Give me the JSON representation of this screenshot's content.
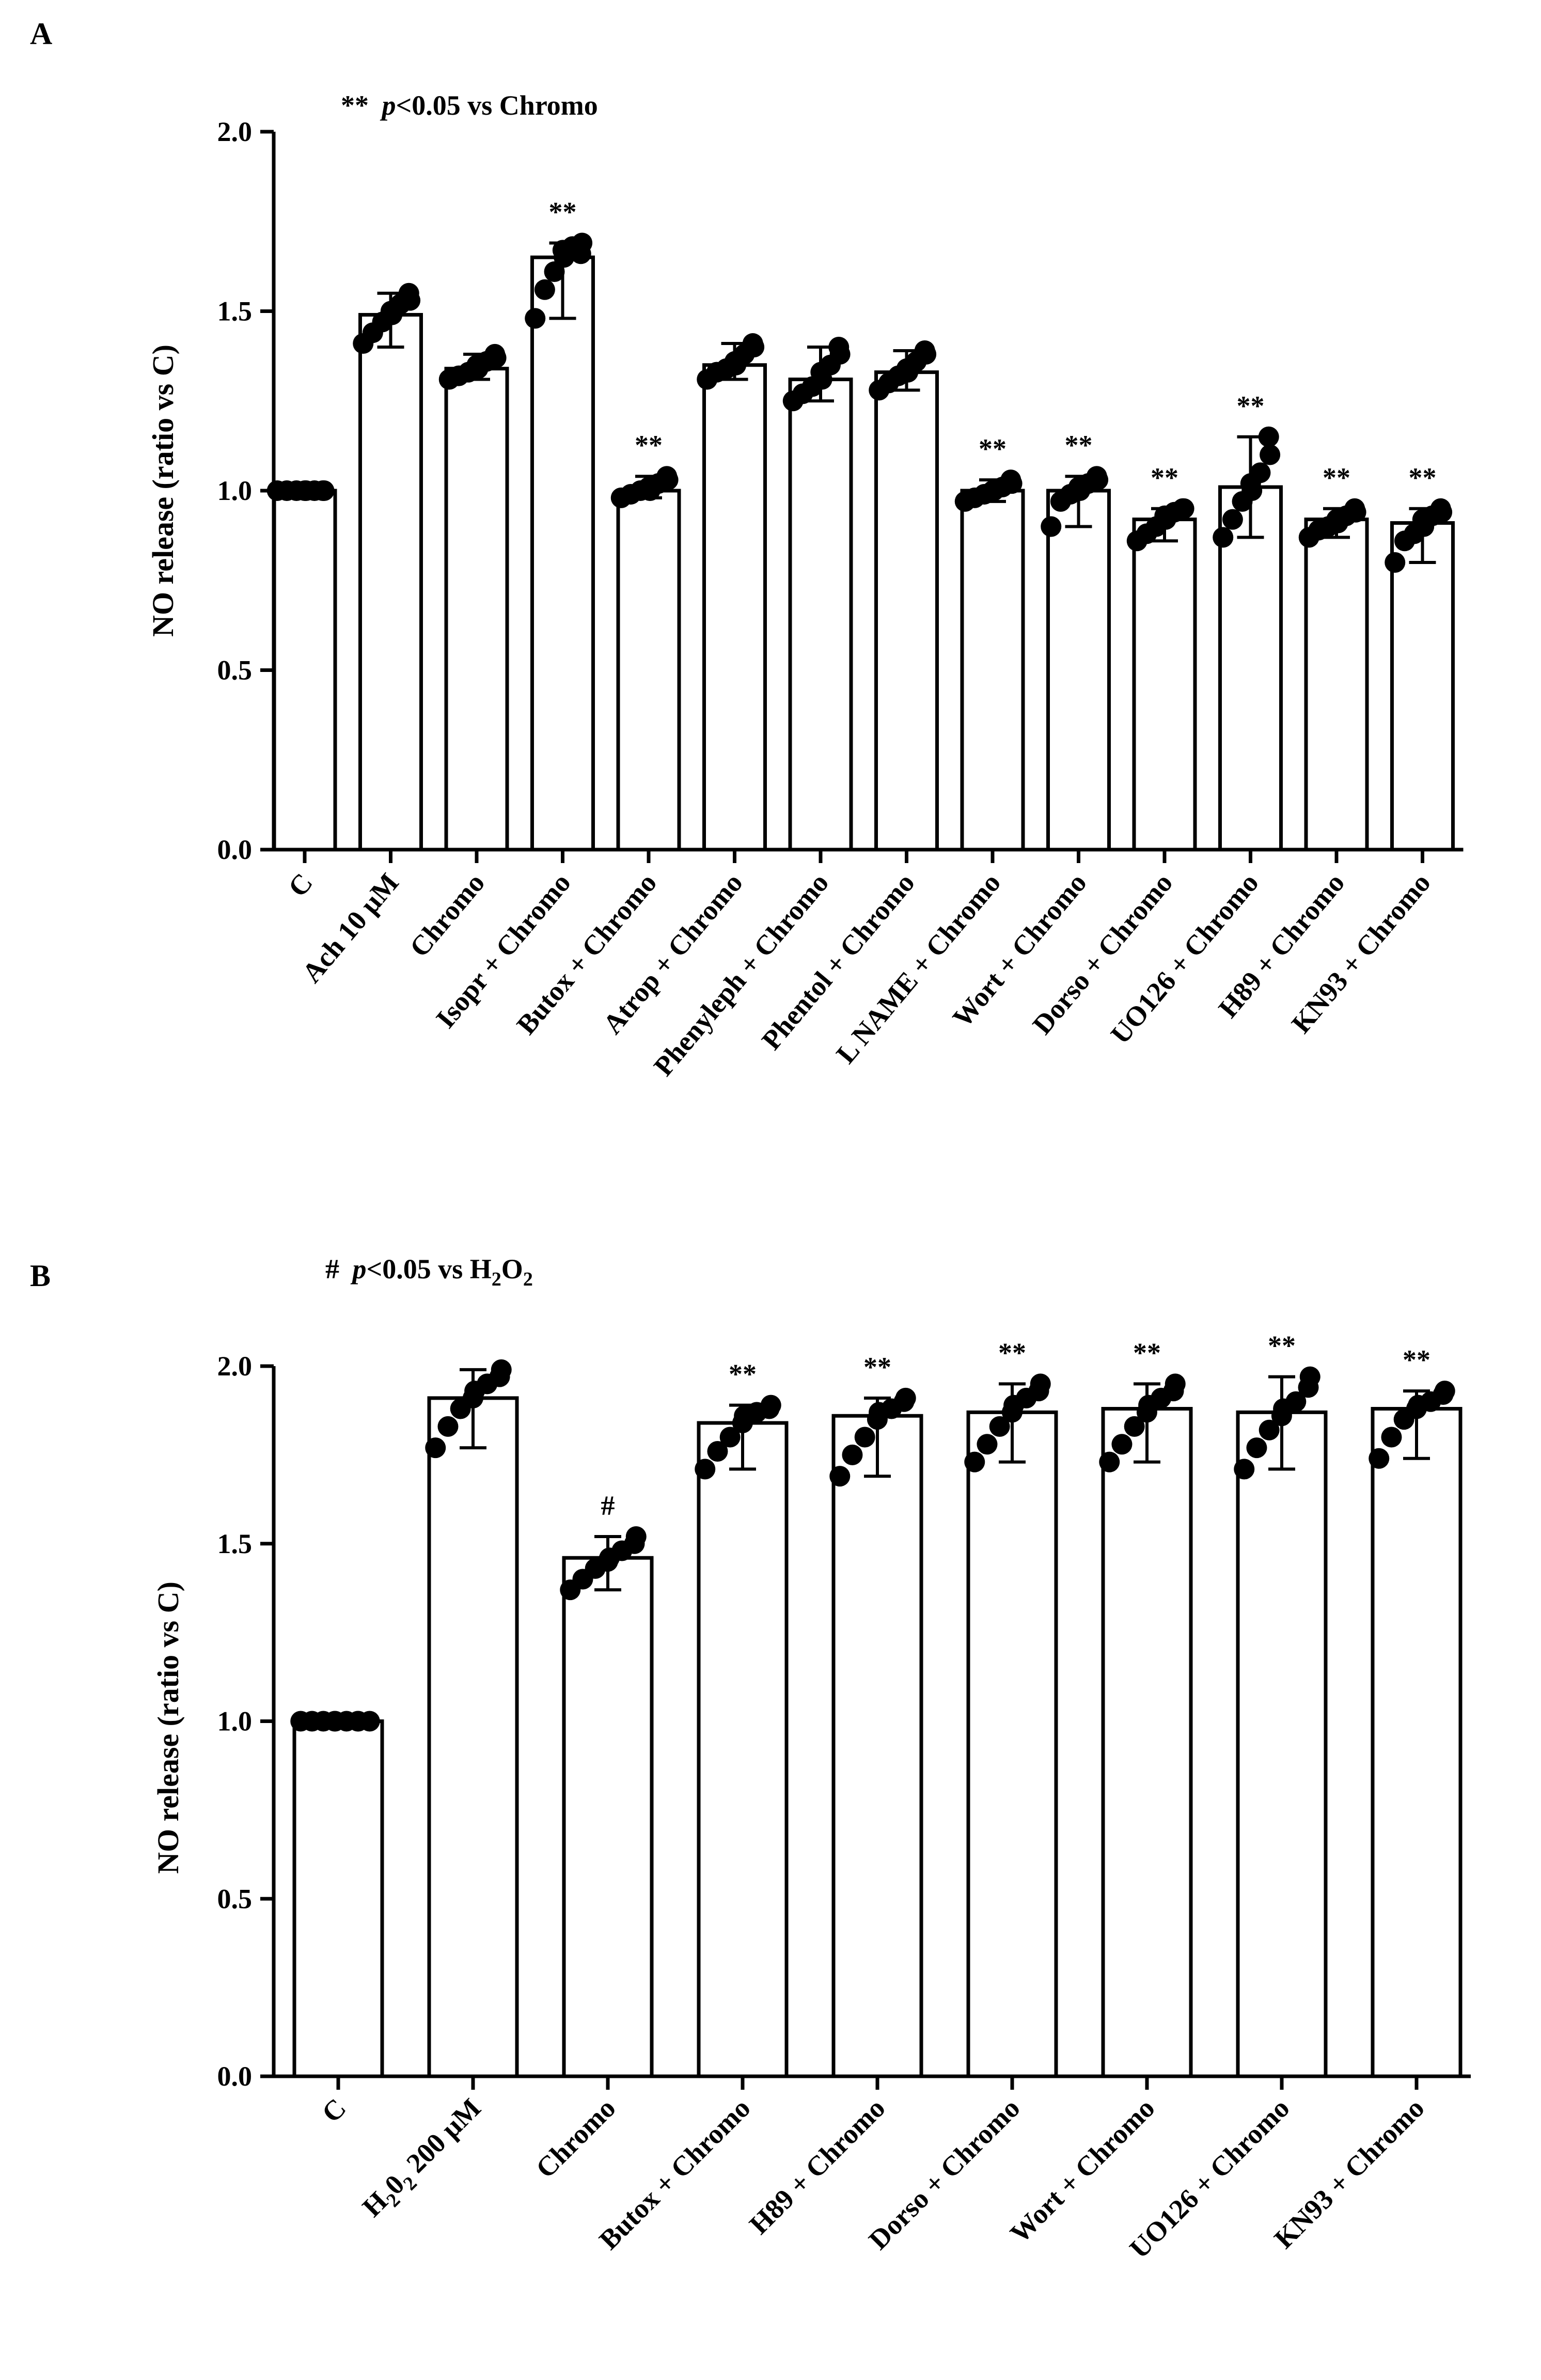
{
  "chart_data": [
    {
      "type": "bar",
      "panel": "A",
      "note": {
        "prefix": "**",
        "italic": "p",
        "rest": "<0.05 vs Chromo"
      },
      "ylabel": "NO release (ratio vs C)",
      "ylim": [
        0.0,
        2.0
      ],
      "yticks": [
        "0.0",
        "0.5",
        "1.0",
        "1.5",
        "2.0"
      ],
      "categories": [
        "C",
        "Ach 10 µM",
        "Chromo",
        "Isopr + Chromo",
        "Butox + Chromo",
        "Atrop  + Chromo",
        "Phenyleph + Chromo",
        "Phentol + Chromo",
        "L NAME + Chromo",
        "Wort + Chromo",
        "Dorso + Chromo",
        "UO126 + Chromo",
        "H89 + Chromo",
        "KN93 + Chromo"
      ],
      "values": [
        1.0,
        1.49,
        1.34,
        1.65,
        1.0,
        1.35,
        1.31,
        1.33,
        1.0,
        1.0,
        0.92,
        1.01,
        0.92,
        0.91
      ],
      "err_low": [
        1.0,
        1.4,
        1.31,
        1.48,
        0.98,
        1.31,
        1.25,
        1.28,
        0.97,
        0.9,
        0.86,
        0.87,
        0.87,
        0.8
      ],
      "err_high": [
        1.0,
        1.55,
        1.38,
        1.69,
        1.04,
        1.41,
        1.4,
        1.39,
        1.03,
        1.04,
        0.95,
        1.15,
        0.95,
        0.95
      ],
      "points": [
        [
          1.0,
          1.0,
          1.0,
          1.0,
          1.0,
          1.0,
          1.0,
          1.0
        ],
        [
          1.41,
          1.44,
          1.47,
          1.49,
          1.5,
          1.52,
          1.53,
          1.55
        ],
        [
          1.31,
          1.32,
          1.33,
          1.34,
          1.35,
          1.36,
          1.37,
          1.38
        ],
        [
          1.48,
          1.56,
          1.61,
          1.65,
          1.67,
          1.68,
          1.69,
          1.66
        ],
        [
          0.98,
          0.99,
          1.0,
          1.0,
          1.01,
          1.02,
          1.03,
          1.04
        ],
        [
          1.31,
          1.33,
          1.34,
          1.35,
          1.36,
          1.38,
          1.4,
          1.41
        ],
        [
          1.25,
          1.27,
          1.29,
          1.31,
          1.33,
          1.35,
          1.38,
          1.4
        ],
        [
          1.28,
          1.3,
          1.32,
          1.33,
          1.34,
          1.36,
          1.38,
          1.39
        ],
        [
          0.97,
          0.98,
          0.99,
          1.0,
          1.0,
          1.01,
          1.02,
          1.03
        ],
        [
          0.9,
          0.97,
          0.99,
          1.0,
          1.01,
          1.02,
          1.03,
          1.04
        ],
        [
          0.86,
          0.88,
          0.9,
          0.92,
          0.93,
          0.94,
          0.95,
          0.95
        ],
        [
          0.87,
          0.92,
          0.97,
          1.0,
          1.02,
          1.05,
          1.1,
          1.15
        ],
        [
          0.87,
          0.89,
          0.9,
          0.91,
          0.92,
          0.93,
          0.94,
          0.95
        ],
        [
          0.8,
          0.86,
          0.88,
          0.9,
          0.92,
          0.93,
          0.94,
          0.95
        ]
      ],
      "annotations": [
        "",
        "",
        "",
        "**",
        "**",
        "",
        "",
        "",
        "**",
        "**",
        "**",
        "**",
        "**",
        "**"
      ]
    },
    {
      "type": "bar",
      "panel": "B",
      "note": {
        "prefix": "#",
        "italic": "p",
        "rest": "<0.05 vs H",
        "sub1": "2",
        "mid": "O",
        "sub2": "2"
      },
      "ylabel": "NO release (ratio vs C)",
      "ylim": [
        0.0,
        2.0
      ],
      "yticks": [
        "0.0",
        "0.5",
        "1.0",
        "1.5",
        "2.0"
      ],
      "categories": [
        "C",
        "H202 200 µM",
        "Chromo",
        "Butox + Chromo",
        "H89 + Chromo",
        "Dorso + Chromo",
        "Wort + Chromo",
        "UO126 + Chromo",
        "KN93 + Chromo"
      ],
      "category_display": {
        "1": {
          "a": "H",
          "s1": "2",
          "b": "0",
          "s2": "2",
          "c": " 200 µM"
        }
      },
      "values": [
        1.0,
        1.91,
        1.46,
        1.84,
        1.86,
        1.87,
        1.88,
        1.87,
        1.88
      ],
      "err_low": [
        1.0,
        1.77,
        1.37,
        1.71,
        1.69,
        1.73,
        1.73,
        1.71,
        1.74
      ],
      "err_high": [
        1.0,
        1.99,
        1.52,
        1.89,
        1.91,
        1.95,
        1.95,
        1.97,
        1.93
      ],
      "points": [
        [
          1.0,
          1.0,
          1.0,
          1.0,
          1.0,
          1.0,
          1.0,
          1.0,
          1.0
        ],
        [
          1.77,
          1.83,
          1.88,
          1.91,
          1.93,
          1.95,
          1.97,
          1.99
        ],
        [
          1.37,
          1.4,
          1.43,
          1.45,
          1.46,
          1.48,
          1.5,
          1.52
        ],
        [
          1.71,
          1.76,
          1.8,
          1.84,
          1.86,
          1.87,
          1.88,
          1.89
        ],
        [
          1.69,
          1.75,
          1.8,
          1.85,
          1.87,
          1.88,
          1.9,
          1.91
        ],
        [
          1.73,
          1.78,
          1.83,
          1.87,
          1.89,
          1.91,
          1.93,
          1.95
        ],
        [
          1.73,
          1.78,
          1.83,
          1.87,
          1.89,
          1.91,
          1.93,
          1.95
        ],
        [
          1.71,
          1.77,
          1.82,
          1.86,
          1.88,
          1.9,
          1.94,
          1.97
        ],
        [
          1.74,
          1.8,
          1.85,
          1.88,
          1.89,
          1.9,
          1.92,
          1.93
        ]
      ],
      "annotations": [
        "",
        "",
        "#",
        "**",
        "**",
        "**",
        "**",
        "**",
        "**"
      ]
    }
  ]
}
